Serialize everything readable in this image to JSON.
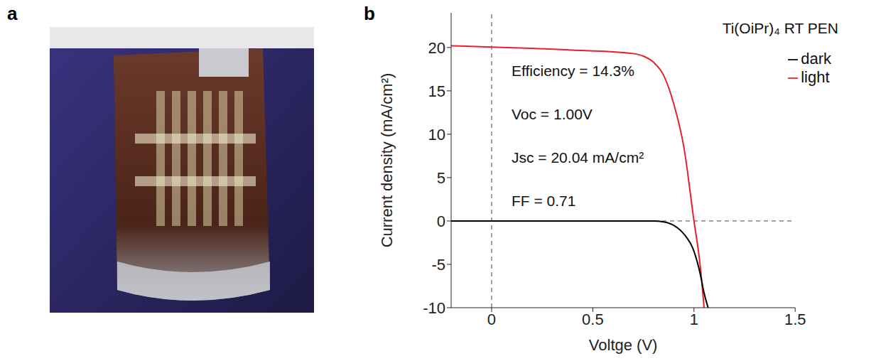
{
  "panels": {
    "a": "a",
    "b": "b"
  },
  "chart_data": {
    "type": "line",
    "title": "Ti(OiPr)₄ RT PEN",
    "x_label": "Voltge (V)",
    "y_label": "Current density (mA/cm²)",
    "annotations": [
      "Efficiency = 14.3%",
      "Voc = 1.00V",
      "Jsc = 20.04 mA/cm²",
      "FF = 0.71"
    ],
    "x": [
      -0.2,
      0,
      0.2,
      0.4,
      0.6,
      0.7,
      0.75,
      0.8,
      0.85,
      0.9,
      0.95,
      1.0,
      1.03,
      1.05,
      1.07
    ],
    "series": [
      {
        "name": "light",
        "color": "#e8202a",
        "values": [
          20.2,
          20.04,
          19.9,
          19.7,
          19.5,
          19.3,
          19.0,
          18.3,
          16.8,
          13.5,
          8.5,
          0,
          -5,
          -10,
          null
        ]
      },
      {
        "name": "dark",
        "color": "#000000",
        "values": [
          0,
          0,
          0,
          0,
          0,
          0,
          0,
          0,
          -0.1,
          -0.5,
          -1.5,
          -3.5,
          -6.0,
          -8.3,
          -10
        ]
      }
    ],
    "xlim": [
      -0.2,
      1.5
    ],
    "ylim": [
      -10,
      24
    ],
    "xticks": [
      0,
      0.5,
      1,
      1.5
    ],
    "yticks": [
      -10,
      -5,
      0,
      5,
      10,
      15,
      20
    ],
    "reference_lines": {
      "x": 0,
      "y": 0
    },
    "legend": "top-right",
    "grid": false
  }
}
